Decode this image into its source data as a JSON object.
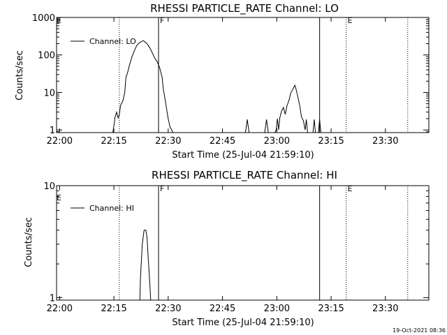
{
  "footer": {
    "stamp": "19-Oct-2021 08:36"
  },
  "chart_data": [
    {
      "type": "line",
      "title": "RHESSI PARTICLE_RATE Channel: LO",
      "xlabel": "Start Time (25-Jul-04 21:59:10)",
      "ylabel": "Counts/sec",
      "yscale": "log",
      "xlim": [
        "21:59:10",
        "23:42:00"
      ],
      "ylim": [
        0.85,
        1000
      ],
      "x_ticks": [
        "22:00",
        "22:15",
        "22:30",
        "22:45",
        "23:00",
        "23:15",
        "23:30"
      ],
      "y_ticks": [
        "1",
        "10",
        "100",
        "1000"
      ],
      "legend": {
        "position": "top-left",
        "entries": [
          "Channel: LO"
        ]
      },
      "markers": [
        {
          "time": "22:16:30",
          "style": "dotted",
          "label": ""
        },
        {
          "time": "22:27:20",
          "style": "solid",
          "label": "F"
        },
        {
          "time": "23:11:50",
          "style": "solid",
          "label": ""
        },
        {
          "time": "23:19:10",
          "style": "dotted",
          "label": "E"
        },
        {
          "time": "23:36:10",
          "style": "dotted",
          "label": ""
        }
      ],
      "corner_mark": "E",
      "series": [
        {
          "name": "Channel: LO",
          "segments": [
            [
              [
                "22:14:40",
                0.85
              ],
              [
                "22:14:50",
                1.0
              ],
              [
                "22:15:20",
                2.2
              ],
              [
                "22:15:45",
                3.0
              ],
              [
                "22:16:10",
                2.1
              ],
              [
                "22:16:30",
                2.5
              ],
              [
                "22:16:50",
                4.5
              ],
              [
                "22:17:30",
                6.0
              ],
              [
                "22:18:00",
                10.0
              ],
              [
                "22:18:20",
                25.0
              ],
              [
                "22:18:50",
                35.0
              ],
              [
                "22:19:20",
                55.0
              ],
              [
                "22:20:00",
                90.0
              ],
              [
                "22:20:40",
                130.0
              ],
              [
                "22:21:20",
                180.0
              ],
              [
                "22:22:00",
                210.0
              ],
              [
                "22:22:40",
                230.0
              ],
              [
                "22:23:10",
                240.0
              ],
              [
                "22:23:40",
                220.0
              ],
              [
                "22:24:20",
                190.0
              ],
              [
                "22:25:00",
                150.0
              ],
              [
                "22:25:40",
                110.0
              ],
              [
                "22:26:20",
                80.0
              ],
              [
                "22:27:00",
                65.0
              ],
              [
                "22:27:40",
                45.0
              ],
              [
                "22:28:20",
                25.0
              ],
              [
                "22:28:40",
                12.0
              ],
              [
                "22:29:00",
                8.0
              ],
              [
                "22:29:30",
                4.0
              ],
              [
                "22:30:00",
                2.0
              ],
              [
                "22:30:30",
                1.2
              ],
              [
                "22:31:00",
                1.0
              ],
              [
                "22:31:20",
                0.85
              ]
            ],
            [
              [
                "22:51:20",
                0.85
              ],
              [
                "22:51:50",
                1.9
              ],
              [
                "22:52:20",
                0.85
              ]
            ],
            [
              [
                "22:56:40",
                0.85
              ],
              [
                "22:57:10",
                1.9
              ],
              [
                "22:57:40",
                0.85
              ]
            ],
            [
              [
                "22:59:30",
                0.85
              ],
              [
                "22:59:50",
                1.0
              ],
              [
                "23:00:10",
                2.0
              ],
              [
                "23:00:30",
                1.0
              ],
              [
                "23:00:50",
                2.1
              ],
              [
                "23:01:20",
                3.2
              ],
              [
                "23:01:50",
                4.0
              ],
              [
                "23:02:20",
                2.6
              ],
              [
                "23:02:50",
                4.5
              ],
              [
                "23:03:20",
                6.0
              ],
              [
                "23:03:50",
                9.5
              ],
              [
                "23:04:30",
                12.5
              ],
              [
                "23:05:00",
                15.5
              ],
              [
                "23:05:20",
                12.0
              ],
              [
                "23:05:50",
                7.5
              ],
              [
                "23:06:20",
                4.5
              ],
              [
                "23:06:50",
                2.2
              ],
              [
                "23:07:20",
                1.8
              ],
              [
                "23:07:50",
                1.0
              ],
              [
                "23:08:10",
                1.9
              ],
              [
                "23:08:30",
                0.85
              ]
            ],
            [
              [
                "23:10:00",
                0.85
              ],
              [
                "23:10:20",
                1.9
              ],
              [
                "23:10:40",
                0.85
              ]
            ],
            [
              [
                "23:11:30",
                0.85
              ],
              [
                "23:11:50",
                1.9
              ],
              [
                "23:12:10",
                0.85
              ]
            ]
          ]
        }
      ]
    },
    {
      "type": "line",
      "title": "RHESSI PARTICLE_RATE Channel: HI",
      "xlabel": "Start Time (25-Jul-04 21:59:10)",
      "ylabel": "Counts/sec",
      "yscale": "log",
      "xlim": [
        "21:59:10",
        "23:42:00"
      ],
      "ylim": [
        0.95,
        10
      ],
      "x_ticks": [
        "22:00",
        "22:15",
        "22:30",
        "22:45",
        "23:00",
        "23:15",
        "23:30"
      ],
      "y_ticks": [
        "1",
        "10"
      ],
      "legend": {
        "position": "top-left",
        "entries": [
          "Channel: HI"
        ]
      },
      "markers": [
        {
          "time": "22:16:30",
          "style": "dotted",
          "label": ""
        },
        {
          "time": "22:27:20",
          "style": "solid",
          "label": "F"
        },
        {
          "time": "23:11:50",
          "style": "solid",
          "label": ""
        },
        {
          "time": "23:19:10",
          "style": "dotted",
          "label": "E"
        },
        {
          "time": "23:36:10",
          "style": "dotted",
          "label": ""
        }
      ],
      "corner_mark": "E",
      "series": [
        {
          "name": "Channel: HI",
          "segments": [
            [
              [
                "22:22:10",
                0.95
              ],
              [
                "22:22:20",
                1.5
              ],
              [
                "22:22:50",
                3.0
              ],
              [
                "22:23:20",
                4.0
              ],
              [
                "22:23:50",
                4.0
              ],
              [
                "22:24:10",
                3.4
              ],
              [
                "22:24:30",
                2.2
              ],
              [
                "22:24:50",
                1.5
              ],
              [
                "22:25:10",
                0.95
              ]
            ]
          ]
        }
      ]
    }
  ]
}
